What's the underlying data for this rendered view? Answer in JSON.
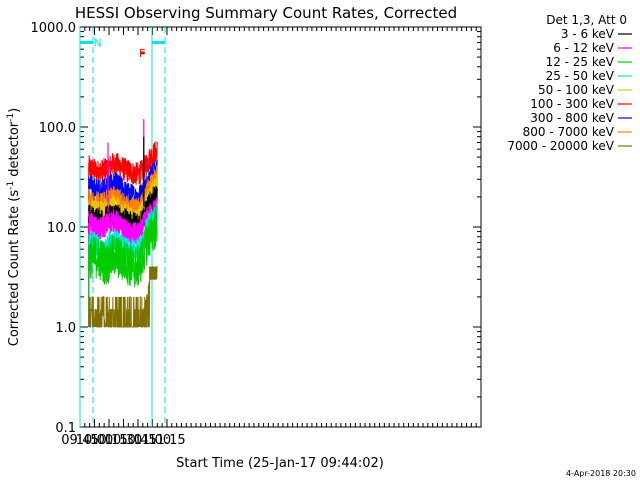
{
  "chart_data": {
    "type": "line",
    "title": "HESSI Observing Summary Count Rates, Corrected",
    "xlabel": "Start Time (25-Jan-17 09:44:02)",
    "ylabel": "Corrected Count Rate (s",
    "ylabel_sup": "-1",
    "ylabel_mid": " detector",
    "ylabel_sup2": "-1",
    "ylabel_end": ")",
    "yscale": "log",
    "ylim": [
      0.1,
      1000
    ],
    "xlim_min": [
      585,
      1000
    ],
    "yticks": [
      {
        "value": 0.1,
        "label": "0.1"
      },
      {
        "value": 1,
        "label": "1.0"
      },
      {
        "value": 10,
        "label": "10.0"
      },
      {
        "value": 100,
        "label": "100.0"
      },
      {
        "value": 1000,
        "label": "1000.0"
      }
    ],
    "xticks": [
      {
        "value": 585,
        "label": "09:45"
      },
      {
        "value": 600,
        "label": "10:00"
      },
      {
        "value": 615,
        "label": "10:15"
      },
      {
        "value": 630,
        "label": "10:30"
      },
      {
        "value": 645,
        "label": "10:45"
      },
      {
        "value": 660,
        "label": "11:00"
      },
      {
        "value": 675,
        "label": "11:15"
      }
    ],
    "legend": {
      "title": "Det 1,3, Att 0",
      "position": "right",
      "entries": [
        {
          "label": "3 - 6 keV",
          "color": "#000000"
        },
        {
          "label": "6 - 12 keV",
          "color": "#ff00ff"
        },
        {
          "label": "12 - 25 keV",
          "color": "#00cc00"
        },
        {
          "label": "25 - 50 keV",
          "color": "#00e5e5"
        },
        {
          "label": "50 - 100 keV",
          "color": "#e5c800"
        },
        {
          "label": "100 - 300 keV",
          "color": "#ff0000"
        },
        {
          "label": "300 - 800 keV",
          "color": "#0000ff"
        },
        {
          "label": "800 - 7000 keV",
          "color": "#ff8000"
        },
        {
          "label": "7000 - 20000 keV",
          "color": "#807000"
        }
      ]
    },
    "series": [
      {
        "color": "#ff0000",
        "x": [
          594,
          597,
          600,
          603,
          606,
          609,
          612,
          615,
          618,
          621,
          624,
          627,
          630,
          633,
          636,
          639,
          642,
          645,
          648,
          651,
          654,
          657,
          660,
          663,
          665
        ],
        "y": [
          40,
          38,
          37,
          36,
          36,
          37,
          38,
          40,
          42,
          43,
          42,
          40,
          38,
          37,
          36,
          35,
          34,
          34,
          35,
          38,
          43,
          48,
          52,
          56,
          58
        ]
      },
      {
        "color": "#0000ff",
        "x": [
          594,
          597,
          600,
          603,
          606,
          609,
          612,
          615,
          618,
          621,
          624,
          627,
          630,
          633,
          636,
          639,
          642,
          645,
          648,
          651,
          654,
          657,
          660,
          663,
          665
        ],
        "y": [
          26,
          25,
          24,
          23,
          23,
          24,
          25,
          26,
          27,
          27,
          26,
          25,
          23,
          22,
          21,
          21,
          20,
          20,
          21,
          23,
          27,
          31,
          34,
          36,
          37
        ]
      },
      {
        "color": "#ff8000",
        "x": [
          594,
          597,
          600,
          603,
          606,
          609,
          612,
          615,
          618,
          621,
          624,
          627,
          630,
          633,
          636,
          639,
          642,
          645,
          648,
          651,
          654,
          657,
          660,
          663,
          665
        ],
        "y": [
          19,
          18,
          17,
          17,
          17,
          17,
          18,
          19,
          20,
          20,
          19,
          18,
          17,
          16,
          15,
          15,
          15,
          15,
          16,
          18,
          21,
          25,
          28,
          31,
          33
        ]
      },
      {
        "color": "#e5c800",
        "x": [
          594,
          597,
          600,
          603,
          606,
          609,
          612,
          615,
          618,
          621,
          624,
          627,
          630,
          633,
          636,
          639,
          642,
          645,
          648,
          651,
          654,
          657,
          660,
          663,
          665
        ],
        "y": [
          15,
          15,
          14,
          14,
          14,
          14,
          15,
          15,
          16,
          16,
          15,
          14,
          14,
          13,
          13,
          12,
          12,
          12,
          13,
          15,
          17,
          20,
          23,
          25,
          27
        ]
      },
      {
        "color": "#000000",
        "x": [
          594,
          597,
          600,
          603,
          606,
          609,
          612,
          615,
          618,
          621,
          624,
          627,
          630,
          633,
          636,
          639,
          642,
          645,
          648,
          651,
          654,
          657,
          660,
          663,
          665
        ],
        "y": [
          13,
          12.5,
          12,
          12,
          12,
          12,
          12.5,
          13,
          13.5,
          13.5,
          13,
          12.5,
          12,
          11.5,
          11,
          11,
          11,
          11,
          11.5,
          13,
          15,
          17,
          19,
          20,
          21
        ]
      },
      {
        "color": "#ff00ff",
        "x": [
          594,
          597,
          600,
          603,
          606,
          609,
          612,
          615,
          618,
          621,
          624,
          627,
          630,
          633,
          636,
          639,
          642,
          645,
          648,
          651,
          654,
          657,
          660,
          663,
          665
        ],
        "y": [
          11,
          10.5,
          10,
          9.5,
          9.5,
          10,
          10.5,
          11,
          11.5,
          11.5,
          11,
          10,
          9.5,
          9,
          8.5,
          8.5,
          8.5,
          8.5,
          9,
          10.5,
          12,
          13,
          14,
          15,
          16
        ]
      },
      {
        "color": "#00e5e5",
        "x": [
          594,
          597,
          600,
          603,
          606,
          609,
          612,
          615,
          618,
          621,
          624,
          627,
          630,
          633,
          636,
          639,
          642,
          645,
          648,
          651,
          654,
          657,
          660,
          663,
          665
        ],
        "y": [
          7,
          7,
          6.8,
          6.5,
          6,
          5.5,
          6,
          7,
          7.5,
          7.5,
          7,
          6.5,
          6.2,
          6,
          5.8,
          5.8,
          6,
          6,
          6.5,
          8,
          9.5,
          11,
          12,
          13,
          14
        ]
      },
      {
        "color": "#00cc00",
        "x": [
          594,
          597,
          600,
          603,
          606,
          609,
          612,
          615,
          618,
          621,
          624,
          627,
          630,
          633,
          636,
          639,
          642,
          645,
          648,
          651,
          654,
          657,
          660,
          663,
          665
        ],
        "y": [
          5,
          5,
          5,
          5,
          4.8,
          4.5,
          4.2,
          4.5,
          5,
          5.2,
          5,
          4.8,
          4.5,
          4.5,
          4.2,
          4,
          4,
          4,
          4.5,
          5.5,
          7,
          8,
          9,
          10,
          11
        ]
      },
      {
        "color": "#807000",
        "x": [
          594,
          597,
          600,
          603,
          606,
          609,
          612,
          615,
          618,
          621,
          624,
          627,
          630,
          633,
          636,
          639,
          642,
          645,
          648,
          651,
          654,
          657,
          660,
          663,
          665
        ],
        "y": [
          1,
          1.5,
          1.2,
          1,
          1.5,
          1.3,
          1,
          1.5,
          1.5,
          1.2,
          1.5,
          1,
          1,
          1,
          1,
          1,
          1,
          1,
          1.2,
          1.5,
          2,
          3,
          3.5,
          3.5,
          3.5
        ]
      }
    ],
    "spikes": [
      {
        "color": "#ff00ff",
        "x": 614,
        "y": 70
      },
      {
        "color": "#ff00ff",
        "x": 651,
        "y": 120
      },
      {
        "color": "#000000",
        "x": 651,
        "y": 80
      }
    ],
    "vlines": [
      {
        "x": 585,
        "style": "solid"
      },
      {
        "x": 598.5,
        "style": "dashed"
      },
      {
        "x": 659.5,
        "style": "solid"
      },
      {
        "x": 673,
        "style": "dashed"
      }
    ],
    "bars": [
      {
        "x1": 585,
        "x2": 598.5,
        "label": ""
      },
      {
        "x1": 659.5,
        "x2": 673,
        "label": ""
      }
    ],
    "bar_y": 700,
    "bar_color": "#00e5e5",
    "annotations": [
      {
        "text": "N",
        "x": 599,
        "y": 700,
        "color": "#00e5e5"
      },
      {
        "text": "F",
        "x": 646,
        "y": 550,
        "color": "#ff0000"
      }
    ],
    "flare_bar": {
      "x1": 648,
      "x2": 652,
      "y": 550,
      "color": "#ff0000"
    },
    "footer": "4-Apr-2018 20:30"
  }
}
